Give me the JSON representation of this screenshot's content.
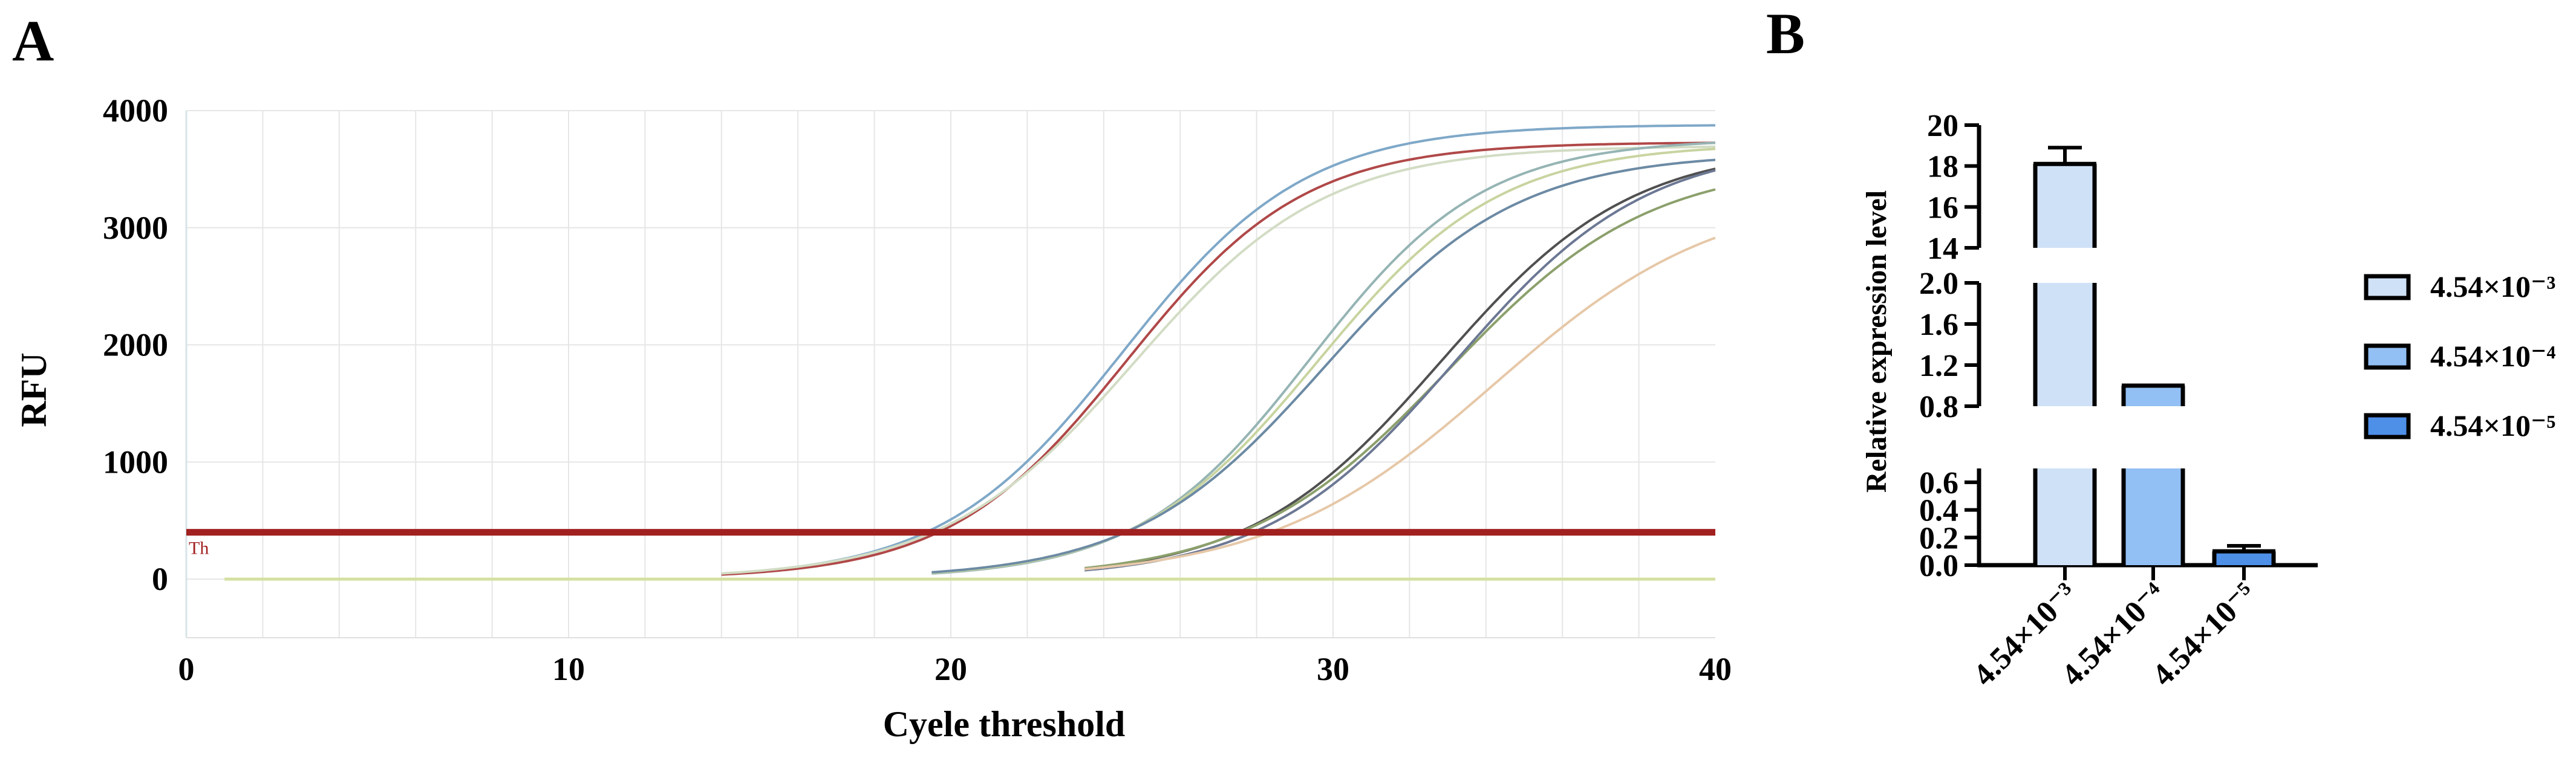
{
  "panels": {
    "a": "A",
    "b": "B"
  },
  "chart_data": [
    {
      "type": "line",
      "panel": "A",
      "xlabel": "Cyele threshold",
      "ylabel": "RFU",
      "xlim": [
        0,
        40
      ],
      "ylim": [
        -500,
        4000
      ],
      "xticks": [
        "0",
        "10",
        "20",
        "30",
        "40"
      ],
      "yticks": [
        "0",
        "1000",
        "2000",
        "3000",
        "4000"
      ],
      "grid": true,
      "threshold": {
        "value": 400,
        "color": "#a12020",
        "tag": "Th"
      },
      "baseline": {
        "value": 0,
        "color": "#d4e0a0"
      },
      "series": [
        {
          "start": 14,
          "ct": 24.5,
          "plateau": 3880,
          "k": 0.42,
          "color": "#7fa8c8"
        },
        {
          "start": 14,
          "ct": 24.6,
          "plateau": 3730,
          "k": 0.43,
          "color": "#b04848"
        },
        {
          "start": 14,
          "ct": 24.8,
          "plateau": 3700,
          "k": 0.4,
          "color": "#d2dcc4"
        },
        {
          "start": 19.5,
          "ct": 29.4,
          "plateau": 3760,
          "k": 0.44,
          "color": "#96b4b4"
        },
        {
          "start": 19.5,
          "ct": 29.6,
          "plateau": 3720,
          "k": 0.42,
          "color": "#c8d4a0"
        },
        {
          "start": 19.5,
          "ct": 29.8,
          "plateau": 3640,
          "k": 0.4,
          "color": "#6c8aa4"
        },
        {
          "start": 23.5,
          "ct": 32.8,
          "plateau": 3700,
          "k": 0.4,
          "color": "#505050"
        },
        {
          "start": 23.5,
          "ct": 33.0,
          "plateau": 3560,
          "k": 0.38,
          "color": "#8ca06c"
        },
        {
          "start": 23.5,
          "ct": 33.2,
          "plateau": 3720,
          "k": 0.4,
          "color": "#6c7894"
        },
        {
          "start": 23.5,
          "ct": 34.2,
          "plateau": 3320,
          "k": 0.34,
          "color": "#e6c8a8"
        }
      ]
    },
    {
      "type": "bar",
      "panel": "B",
      "ylabel": "Relative expression level",
      "categories": [
        "4.54×10⁻³",
        "4.54×10⁻⁴",
        "4.54×10⁻⁵"
      ],
      "values": [
        18.1,
        1.0,
        0.1
      ],
      "errors": [
        0.8,
        0.0,
        0.04
      ],
      "colors": [
        "#cfe1f7",
        "#92bff4",
        "#4e8fe8"
      ],
      "legend_position": "right",
      "y_segments": [
        {
          "range": [
            0,
            0.7
          ],
          "ticks": [
            "0.0",
            "0.2",
            "0.4",
            "0.6"
          ]
        },
        {
          "range": [
            0.8,
            2.0
          ],
          "ticks": [
            "0.8",
            "1.2",
            "1.6",
            "2.0"
          ]
        },
        {
          "range": [
            14,
            20
          ],
          "ticks": [
            "14",
            "16",
            "18",
            "20"
          ]
        }
      ]
    }
  ]
}
